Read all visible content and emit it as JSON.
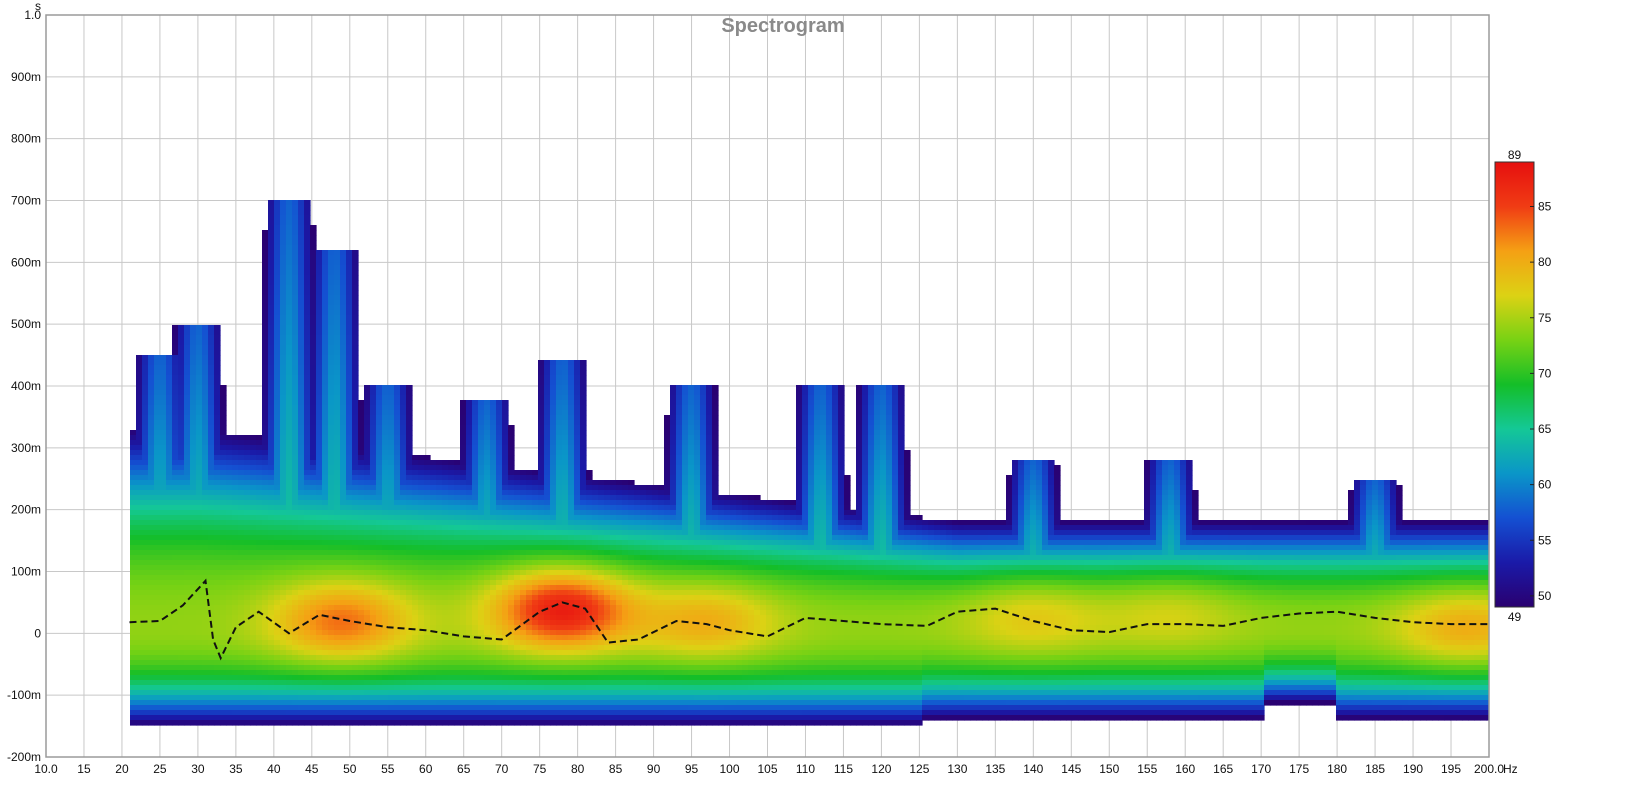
{
  "chart_data": {
    "type": "heatmap",
    "title": "Spectrogram",
    "x_unit": "Hz",
    "y_unit": "s",
    "xlim": [
      10.0,
      200.0
    ],
    "ylim": [
      -0.2,
      1.0
    ],
    "x_ticks": [
      "10.0",
      "15",
      "20",
      "25",
      "30",
      "35",
      "40",
      "45",
      "50",
      "55",
      "60",
      "65",
      "70",
      "75",
      "80",
      "85",
      "90",
      "95",
      "100",
      "105",
      "110",
      "115",
      "120",
      "125",
      "130",
      "135",
      "140",
      "145",
      "150",
      "155",
      "160",
      "165",
      "170",
      "175",
      "180",
      "185",
      "190",
      "195",
      "200.0"
    ],
    "y_ticks": [
      {
        "value": 1.0,
        "label": "1.0"
      },
      {
        "value": 0.9,
        "label": "900m"
      },
      {
        "value": 0.8,
        "label": "800m"
      },
      {
        "value": 0.7,
        "label": "700m"
      },
      {
        "value": 0.6,
        "label": "600m"
      },
      {
        "value": 0.5,
        "label": "500m"
      },
      {
        "value": 0.4,
        "label": "400m"
      },
      {
        "value": 0.3,
        "label": "300m"
      },
      {
        "value": 0.2,
        "label": "200m"
      },
      {
        "value": 0.1,
        "label": "100m"
      },
      {
        "value": 0.0,
        "label": "0"
      },
      {
        "value": -0.1,
        "label": "-100m"
      },
      {
        "value": -0.2,
        "label": "-200m"
      }
    ],
    "grid": true,
    "colorbar": {
      "min": 49,
      "max": 89,
      "min_label": "49",
      "max_label": "89",
      "ticks": [
        {
          "value": 85,
          "label": "85"
        },
        {
          "value": 80,
          "label": "80"
        },
        {
          "value": 75,
          "label": "75"
        },
        {
          "value": 70,
          "label": "70"
        },
        {
          "value": 65,
          "label": "65"
        },
        {
          "value": 60,
          "label": "60"
        },
        {
          "value": 55,
          "label": "55"
        },
        {
          "value": 50,
          "label": "50"
        }
      ],
      "colors": [
        "#2a0070",
        "#1a1aa8",
        "#1450d2",
        "#0a96c8",
        "#14c896",
        "#14be28",
        "#78d214",
        "#dcd214",
        "#f5a014",
        "#f03c14",
        "#e60f0f"
      ]
    },
    "peaks": [
      {
        "freq": 49,
        "time": 0.02,
        "level": 83
      },
      {
        "freq": 78,
        "time": 0.04,
        "level": 88
      },
      {
        "freq": 97,
        "time": 0.02,
        "level": 80
      },
      {
        "freq": 140,
        "time": 0.03,
        "level": 78
      },
      {
        "freq": 158,
        "time": 0.04,
        "level": 77
      },
      {
        "freq": 197,
        "time": 0.01,
        "level": 80
      }
    ],
    "peak_energy_curve": {
      "freq": [
        21,
        25,
        28,
        31,
        32,
        33,
        35,
        38,
        42,
        46,
        50,
        55,
        60,
        65,
        70,
        75,
        78,
        81,
        84,
        88,
        93,
        97,
        100,
        105,
        110,
        115,
        120,
        126,
        130,
        135,
        140,
        145,
        150,
        155,
        160,
        165,
        170,
        175,
        180,
        185,
        190,
        195,
        200
      ],
      "time": [
        0.018,
        0.02,
        0.045,
        0.085,
        -0.01,
        -0.04,
        0.01,
        0.035,
        0.0,
        0.03,
        0.02,
        0.01,
        0.005,
        -0.005,
        -0.01,
        0.035,
        0.05,
        0.04,
        -0.015,
        -0.01,
        0.02,
        0.015,
        0.005,
        -0.005,
        0.025,
        0.02,
        0.015,
        0.012,
        0.035,
        0.04,
        0.02,
        0.005,
        0.002,
        0.015,
        0.015,
        0.012,
        0.025,
        0.032,
        0.035,
        0.025,
        0.018,
        0.015,
        0.015
      ]
    },
    "axis_bottom_unit_label": "Hz",
    "axis_left_unit_label": "s"
  }
}
